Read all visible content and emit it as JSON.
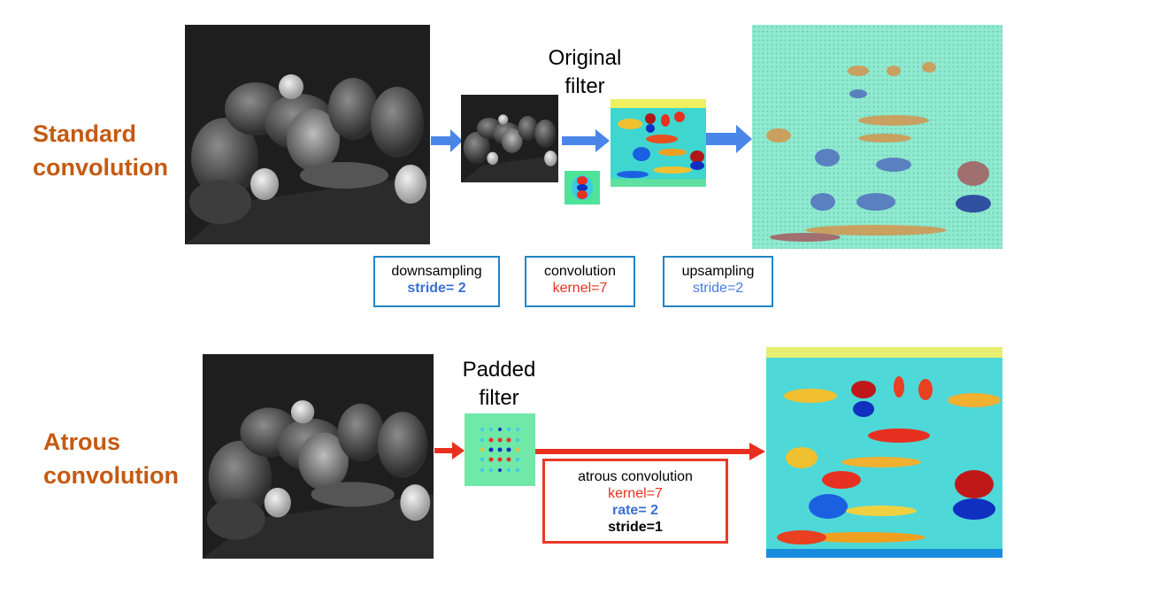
{
  "standard": {
    "label_line1": "Standard",
    "label_line2": "convolution",
    "filter_caption_line1": "Original",
    "filter_caption_line2": "filter",
    "ops": [
      {
        "title": "downsampling",
        "param": "stride= 2",
        "param_color": "#3b6fd4",
        "param_bold": true
      },
      {
        "title": "convolution",
        "param": "kernel=7",
        "param_color": "#e8301f",
        "param_bold": false
      },
      {
        "title": "upsampling",
        "param": "stride=2",
        "param_color": "#4a7be0",
        "param_bold": false
      }
    ]
  },
  "atrous": {
    "label_line1": "Atrous",
    "label_line2": "convolution",
    "filter_caption_line1": "Padded",
    "filter_caption_line2": "filter",
    "op": {
      "title": "atrous convolution",
      "kernel": "kernel=7",
      "rate": "rate= 2",
      "stride": "stride=1"
    }
  },
  "colors": {
    "label_orange": "#c55a11",
    "blue_arrow": "#4a86e8",
    "red_arrow": "#e8301f",
    "box_border_blue": "#1f86c7",
    "box_border_red": "#e83a2a"
  }
}
